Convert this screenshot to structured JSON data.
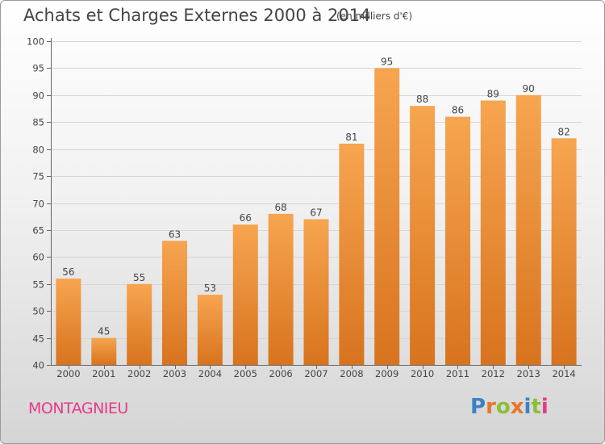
{
  "header": {
    "title": "Achats et Charges Externes 2000 à 2014",
    "subtitle": "(en milliers d'€)"
  },
  "footer": {
    "place": "MONTAGNIEU",
    "logo": "Proxiti"
  },
  "colors": {
    "bar_top": "#f7a550",
    "bar_bottom": "#d8731e",
    "place_text": "#e63a86",
    "logo_letters": [
      "#3b82c4",
      "#e9752a",
      "#8cbf3a",
      "#e9752a",
      "#3b82c4",
      "#8cbf3a",
      "#e63a86"
    ]
  },
  "chart_data": {
    "type": "bar",
    "title": "Achats et Charges Externes 2000 à 2014",
    "subtitle": "(en milliers d'€)",
    "categories": [
      "2000",
      "2001",
      "2002",
      "2003",
      "2004",
      "2005",
      "2006",
      "2007",
      "2008",
      "2009",
      "2010",
      "2011",
      "2012",
      "2013",
      "2014"
    ],
    "values": [
      56,
      45,
      55,
      63,
      53,
      66,
      68,
      67,
      81,
      95,
      88,
      86,
      89,
      90,
      82
    ],
    "ylim": [
      40,
      100
    ],
    "yticks": [
      40,
      45,
      50,
      55,
      60,
      65,
      70,
      75,
      80,
      85,
      90,
      95,
      100
    ],
    "grid": true,
    "data_labels": true
  }
}
